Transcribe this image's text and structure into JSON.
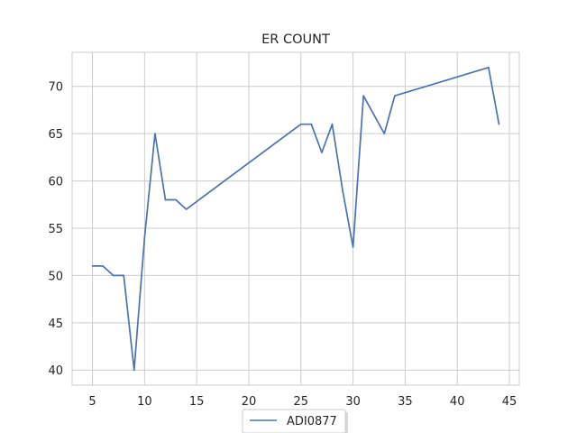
{
  "chart_data": {
    "type": "line",
    "title": "ER COUNT",
    "xlabel": "",
    "ylabel": "",
    "xlim": [
      3.05,
      45.95
    ],
    "ylim": [
      38.4,
      73.6
    ],
    "xticks": [
      5,
      10,
      15,
      20,
      25,
      30,
      35,
      40,
      45
    ],
    "yticks": [
      40,
      45,
      50,
      55,
      60,
      65,
      70
    ],
    "grid": true,
    "legend_position": "bottom-center",
    "series": [
      {
        "name": "ADI0877",
        "color": "#4c72b0",
        "x": [
          5,
          6,
          7,
          8,
          9,
          10,
          11,
          12,
          13,
          14,
          25,
          26,
          27,
          28,
          29,
          30,
          31,
          33,
          34,
          43,
          44
        ],
        "y": [
          51,
          51,
          50,
          50,
          40,
          54,
          65,
          58,
          58,
          57,
          66,
          66,
          63,
          66,
          59,
          53,
          69,
          65,
          69,
          72,
          66
        ]
      }
    ]
  }
}
